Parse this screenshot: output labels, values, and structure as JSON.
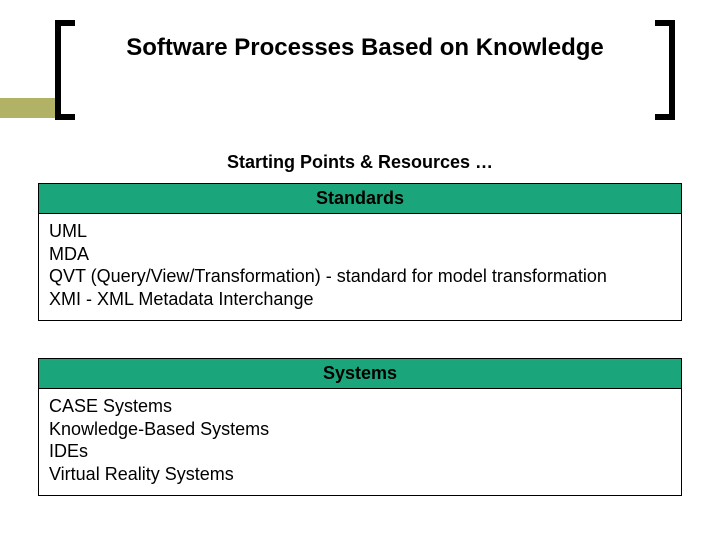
{
  "colors": {
    "accent_bar": "#b2b266",
    "section_header_bg": "#1aa67a",
    "page_bg": "#ffffff",
    "text": "#000000",
    "border": "#000000"
  },
  "title": "Software Processes Based on Knowledge",
  "subtitle": "Starting Points & Resources …",
  "sections": [
    {
      "header": "Standards",
      "items": [
        "UML",
        "MDA",
        "QVT (Query/View/Transformation) - standard for model transformation",
        "XMI - XML Metadata Interchange"
      ]
    },
    {
      "header": "Systems",
      "items": [
        "CASE Systems",
        "Knowledge-Based Systems",
        "IDEs",
        "Virtual Reality Systems"
      ]
    }
  ]
}
